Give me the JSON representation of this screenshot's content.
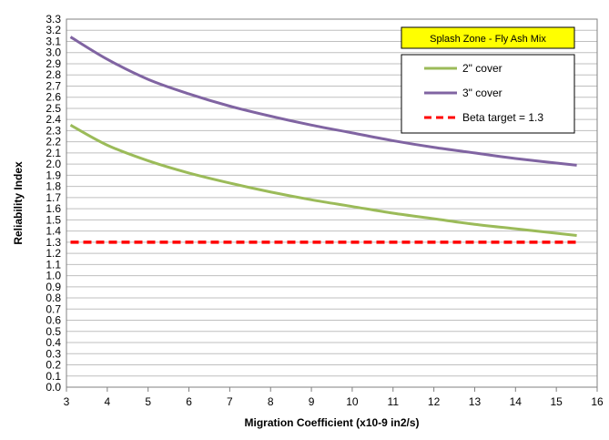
{
  "chart_data": {
    "type": "line",
    "title": "Splash Zone - Fly Ash Mix",
    "xlabel": "Migration Coefficient (x10-9 in2/s)",
    "ylabel": "Reliability Index",
    "xlim": [
      3,
      16
    ],
    "ylim": [
      0,
      3.3
    ],
    "xticks": [
      "3",
      "4",
      "5",
      "6",
      "7",
      "8",
      "9",
      "10",
      "11",
      "12",
      "13",
      "14",
      "15",
      "16"
    ],
    "yticks": [
      "0.0",
      "0.1",
      "0.2",
      "0.3",
      "0.4",
      "0.5",
      "0.6",
      "0.7",
      "0.8",
      "0.9",
      "1.0",
      "1.1",
      "1.2",
      "1.3",
      "1.4",
      "1.5",
      "1.6",
      "1.7",
      "1.8",
      "1.9",
      "2.0",
      "2.1",
      "2.2",
      "2.3",
      "2.4",
      "2.5",
      "2.6",
      "2.7",
      "2.8",
      "2.9",
      "3.0",
      "3.1",
      "3.2",
      "3.3"
    ],
    "grid": "horizontal",
    "legend_position": "top-right",
    "series": [
      {
        "name": "2\" cover",
        "color": "#9BBB59",
        "style": "solid",
        "x": [
          3.1,
          4,
          5,
          6,
          7,
          8,
          9,
          10,
          11,
          12,
          13,
          14,
          15.5
        ],
        "y": [
          2.35,
          2.17,
          2.03,
          1.92,
          1.83,
          1.75,
          1.68,
          1.62,
          1.56,
          1.51,
          1.46,
          1.42,
          1.36
        ]
      },
      {
        "name": "3\" cover",
        "color": "#8064A2",
        "style": "solid",
        "x": [
          3.1,
          4,
          5,
          6,
          7,
          8,
          9,
          10,
          11,
          12,
          13,
          14,
          15.5
        ],
        "y": [
          3.14,
          2.94,
          2.76,
          2.63,
          2.52,
          2.43,
          2.35,
          2.28,
          2.21,
          2.15,
          2.1,
          2.05,
          1.99
        ]
      },
      {
        "name": "Beta target = 1.3",
        "color": "#FF0000",
        "style": "dashed",
        "x": [
          3.1,
          15.5
        ],
        "y": [
          1.3,
          1.3
        ]
      }
    ]
  }
}
